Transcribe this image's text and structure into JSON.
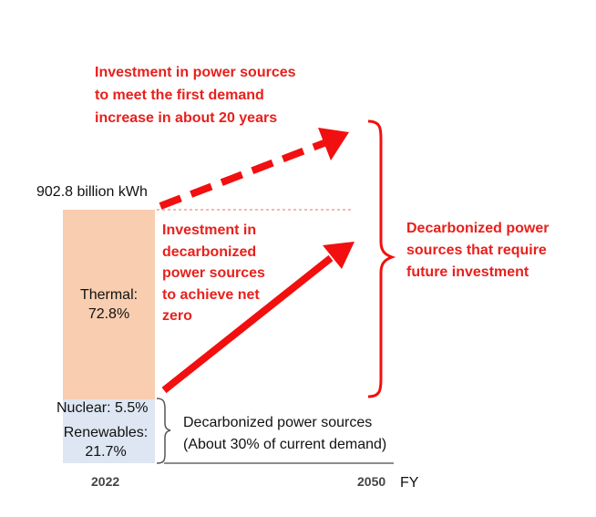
{
  "total_label": "902.8 billion kWh",
  "thermal": {
    "label": "Thermal:",
    "value": "72.8%",
    "share": 72.8,
    "color": "#f8cdb0"
  },
  "nuclear": {
    "label": "Nuclear: 5.5%",
    "share": 5.5,
    "color": "#dde6f2"
  },
  "renewables": {
    "label": "Renewables:",
    "value": "21.7%",
    "share": 21.7,
    "color": "#dde6f2"
  },
  "annotation_top": [
    "Investment in power sources",
    "to meet the first demand",
    "increase in about 20 years"
  ],
  "annotation_middle": [
    "Investment in",
    "decarbonized",
    "power sources",
    "to achieve net",
    "zero"
  ],
  "annotation_right": [
    "Decarbonized power",
    "sources that require",
    "future investment"
  ],
  "annotation_bottom": [
    "Decarbonized power sources",
    "(About 30% of current demand)"
  ],
  "axis": {
    "start": "2022",
    "end": "2050",
    "unit": "FY"
  },
  "colors": {
    "accent_red": "#f20f0f",
    "text_red": "#e8201c"
  }
}
